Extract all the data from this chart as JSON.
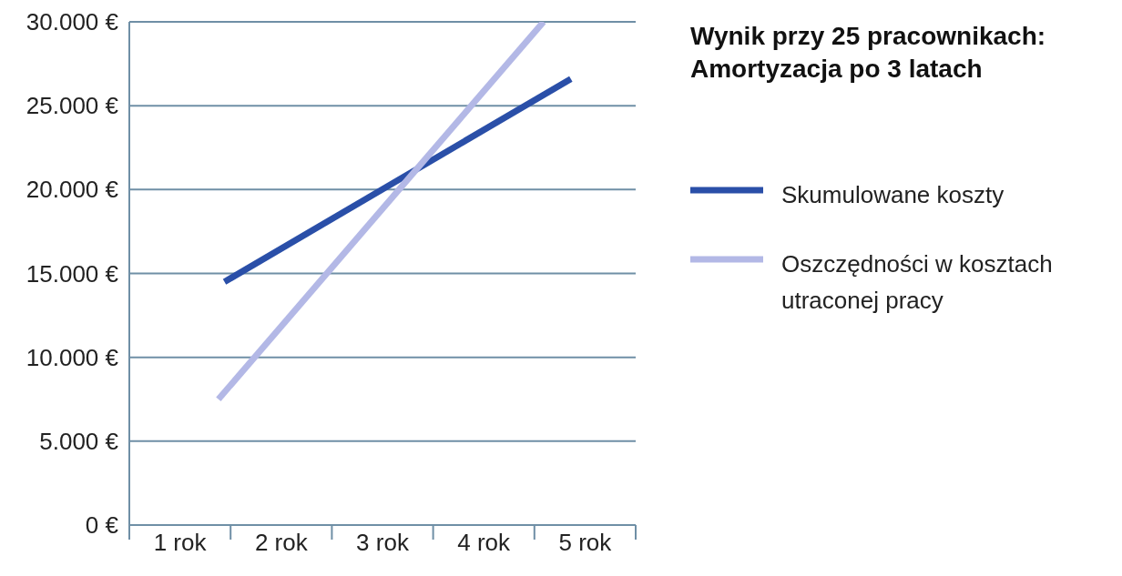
{
  "chart_data": {
    "type": "line",
    "title": "Wynik przy 25 pracownikach: Amortyzacja po 3 latach",
    "xlim": [
      0.5,
      5.5
    ],
    "xticks": [
      {
        "value": 0.5,
        "label": null
      },
      {
        "value": 1,
        "label": "1 rok"
      },
      {
        "value": 1.5,
        "label": null
      },
      {
        "value": 2,
        "label": "2 rok"
      },
      {
        "value": 2.5,
        "label": null
      },
      {
        "value": 3,
        "label": "3 rok"
      },
      {
        "value": 3.5,
        "label": null
      },
      {
        "value": 4,
        "label": "4 rok"
      },
      {
        "value": 4.5,
        "label": null
      },
      {
        "value": 5,
        "label": "5 rok"
      },
      {
        "value": 5.5,
        "label": null
      }
    ],
    "ylim": [
      0,
      30000
    ],
    "yticks": [
      {
        "value": 0,
        "label": "0 €"
      },
      {
        "value": 5000,
        "label": "5.000 €"
      },
      {
        "value": 10000,
        "label": "10.000 €"
      },
      {
        "value": 15000,
        "label": "15.000 €"
      },
      {
        "value": 20000,
        "label": "20.000 €"
      },
      {
        "value": 25000,
        "label": "25.000 €"
      },
      {
        "value": 30000,
        "label": "30.000 €"
      }
    ],
    "series": [
      {
        "name": "Skumulowane koszty",
        "color": "#2a4fa8",
        "x": [
          1.44,
          4.86
        ],
        "values": [
          14500,
          26600
        ]
      },
      {
        "name": "Oszczędności w kosztach utraconej pracy",
        "color": "#b3b8e6",
        "x": [
          1.38,
          4.59
        ],
        "values": [
          7500,
          30000
        ]
      }
    ],
    "grid": "y",
    "legend": "right",
    "marker": "none",
    "line_style": "solid"
  }
}
